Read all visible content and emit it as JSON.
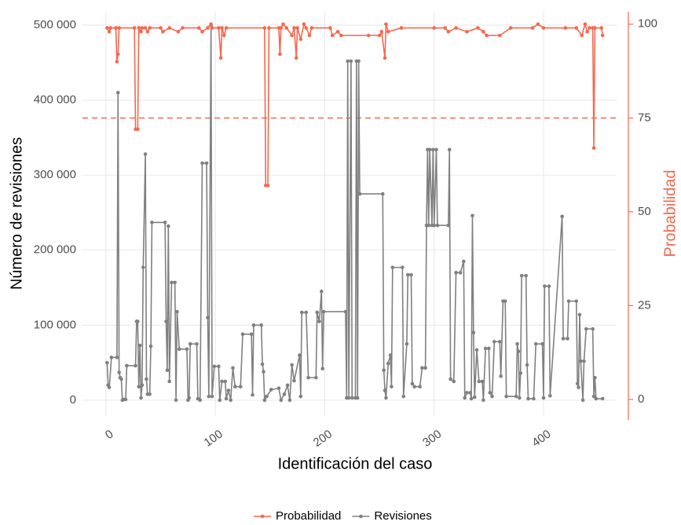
{
  "chart_data": {
    "type": "line",
    "x_label": "Identificación del caso",
    "y_label": "Número de revisiones",
    "y2_label": "Probabilidad",
    "xlim": [
      -21.5,
      466.8
    ],
    "ylim": [
      -21000,
      517800
    ],
    "y2lim": [
      -4.4,
      103.3
    ],
    "xticks": [
      0,
      100,
      200,
      300,
      400
    ],
    "yticks": [
      {
        "value": 0,
        "label": "0"
      },
      {
        "value": 100000,
        "label": "100 000"
      },
      {
        "value": 200000,
        "label": "200 000"
      },
      {
        "value": 300000,
        "label": "300 000"
      },
      {
        "value": 400000,
        "label": "400 000"
      },
      {
        "value": 500000,
        "label": "500 000"
      }
    ],
    "y2ticks": [
      0,
      25,
      50,
      75,
      100
    ],
    "y2_color": "#f4694f",
    "hline": 75,
    "hline_color": "#f4694f",
    "grid": true,
    "legend": "bottom",
    "series": [
      {
        "name": "Probabilidad",
        "color": "#f4694f",
        "axis": "y2",
        "x": [
          1,
          3,
          4,
          9,
          10,
          11,
          12,
          26,
          27,
          29,
          30,
          32,
          33,
          36,
          38,
          40,
          50,
          52,
          58,
          66,
          70,
          85,
          88,
          93,
          96,
          97,
          103,
          105,
          106,
          108,
          110,
          145,
          146,
          148,
          149,
          158,
          159,
          160,
          162,
          165,
          170,
          172,
          174,
          175,
          178,
          181,
          183,
          186,
          188,
          205,
          207,
          212,
          215,
          240,
          250,
          252,
          255,
          256,
          258,
          270,
          300,
          310,
          313,
          320,
          330,
          340,
          345,
          348,
          360,
          370,
          390,
          395,
          400,
          420,
          430,
          435,
          438,
          440,
          442,
          445,
          446,
          447,
          453,
          454
        ],
        "values": [
          99,
          98,
          99,
          99,
          90,
          92,
          99,
          99,
          72,
          72,
          99,
          98,
          99,
          99,
          98,
          99,
          99,
          98,
          99,
          98,
          99,
          99,
          98,
          99,
          100,
          99,
          99,
          91,
          99,
          97,
          99,
          99,
          57,
          57,
          99,
          99,
          92,
          99,
          100,
          99,
          97,
          99,
          91,
          99,
          96,
          100,
          99,
          97,
          99,
          99,
          97,
          98,
          97,
          97,
          97,
          98,
          91,
          100,
          98,
          99,
          99,
          99,
          98,
          99,
          98,
          99,
          98,
          97,
          97,
          99,
          99,
          100,
          99,
          99,
          99,
          97,
          100,
          98,
          99,
          99,
          67,
          99,
          99,
          97
        ]
      },
      {
        "name": "Revisiones",
        "color": "#808080",
        "x": [
          1,
          2,
          3,
          5,
          10,
          11,
          12,
          13,
          14,
          15,
          16,
          18,
          19,
          27,
          28,
          29,
          30,
          31,
          32,
          33,
          34,
          36,
          37,
          38,
          40,
          41,
          42,
          54,
          55,
          56,
          57,
          58,
          60,
          63,
          64,
          65,
          67,
          74,
          75,
          76,
          77,
          83,
          84,
          86,
          88,
          92,
          93,
          94,
          96,
          97,
          99,
          103,
          104,
          106,
          109,
          110,
          112,
          114,
          116,
          118,
          123,
          125,
          133,
          134,
          135,
          142,
          143,
          144,
          145,
          147,
          151,
          158,
          160,
          163,
          166,
          168,
          170,
          172,
          177,
          178,
          179,
          183,
          185,
          192,
          193,
          195,
          197,
          198,
          199,
          219,
          220,
          221,
          222,
          224,
          225,
          228,
          229,
          230,
          231,
          232,
          253,
          254,
          255,
          256,
          258,
          260,
          261,
          262,
          271,
          272,
          275,
          276,
          279,
          280,
          282,
          287,
          289,
          292,
          293,
          294,
          295,
          296,
          298,
          299,
          300,
          302,
          303,
          313,
          314,
          315,
          318,
          320,
          324,
          327,
          328,
          330,
          333,
          334,
          335,
          336,
          337,
          339,
          341,
          344,
          345,
          347,
          350,
          351,
          353,
          355,
          360,
          361,
          363,
          365,
          366,
          375,
          376,
          377,
          378,
          379,
          380,
          384,
          385,
          386,
          391,
          393,
          399,
          400,
          401,
          405,
          406,
          417,
          418,
          422,
          423,
          430,
          431,
          432,
          433,
          434,
          436,
          437,
          439,
          445,
          446,
          447,
          448,
          454
        ],
        "values": [
          50000,
          20000,
          17000,
          57000,
          57000,
          410000,
          37000,
          30000,
          28000,
          0,
          1000,
          1000,
          46000,
          46000,
          105000,
          105000,
          18000,
          73000,
          3000,
          20000,
          177000,
          328000,
          28000,
          8000,
          8000,
          72000,
          237000,
          237000,
          105000,
          40000,
          232000,
          25000,
          157000,
          157000,
          0,
          118000,
          68000,
          68000,
          0,
          3000,
          75000,
          75000,
          2000,
          0,
          316000,
          316000,
          110000,
          5000,
          500000,
          5000,
          45000,
          45000,
          0,
          25000,
          25000,
          2000,
          13000,
          0,
          43000,
          18000,
          18000,
          88000,
          88000,
          7000,
          100000,
          100000,
          48000,
          38000,
          0,
          5000,
          14000,
          16000,
          0,
          8000,
          20000,
          0,
          47000,
          26000,
          60000,
          5000,
          117000,
          117000,
          30000,
          30000,
          117000,
          105000,
          145000,
          42000,
          118000,
          118000,
          3000,
          452000,
          3000,
          452000,
          3000,
          3000,
          452000,
          3000,
          452000,
          275000,
          275000,
          40000,
          13000,
          3000,
          49000,
          60000,
          18000,
          177000,
          177000,
          5000,
          75000,
          167000,
          167000,
          22000,
          18000,
          18000,
          43000,
          43000,
          233000,
          334000,
          233000,
          334000,
          233000,
          334000,
          233000,
          334000,
          233000,
          233000,
          334000,
          28000,
          25000,
          170000,
          170000,
          185000,
          3000,
          10000,
          10000,
          2000,
          246000,
          90000,
          4000,
          67000,
          25000,
          25000,
          0,
          69000,
          69000,
          10000,
          5000,
          78000,
          78000,
          32000,
          132000,
          132000,
          5000,
          5000,
          75000,
          65000,
          3000,
          36000,
          166000,
          166000,
          47000,
          2000,
          2000,
          75000,
          75000,
          3000,
          152000,
          152000,
          6000,
          245000,
          82000,
          82000,
          132000,
          132000,
          22000,
          17000,
          114000,
          52000,
          0,
          52000,
          95000,
          95000,
          5000,
          30000,
          2000,
          2000
        ]
      }
    ]
  }
}
